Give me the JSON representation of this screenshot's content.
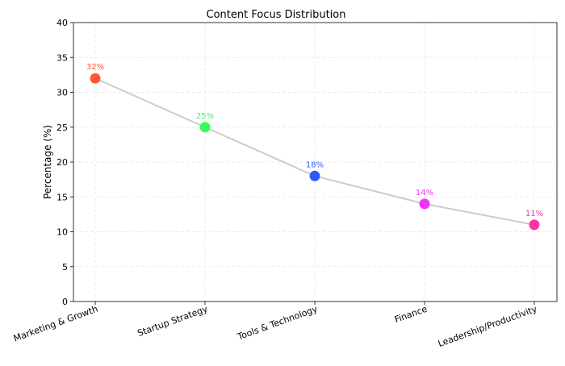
{
  "chart_data": {
    "type": "line",
    "title": "Content Focus Distribution",
    "xlabel": "",
    "ylabel": "Percentage (%)",
    "ylim": [
      0,
      40
    ],
    "yticks": [
      0,
      5,
      10,
      15,
      20,
      25,
      30,
      35,
      40
    ],
    "grid": true,
    "categories": [
      "Marketing & Growth",
      "Startup Strategy",
      "Tools & Technology",
      "Finance",
      "Leadership/Productivity"
    ],
    "values": [
      32,
      25,
      18,
      14,
      11
    ],
    "data_labels": [
      "32%",
      "25%",
      "18%",
      "14%",
      "11%"
    ],
    "point_colors": [
      "#FF5733",
      "#33FF57",
      "#3357FF",
      "#F033FF",
      "#FF33A8"
    ],
    "line_color": "#cccccc"
  }
}
